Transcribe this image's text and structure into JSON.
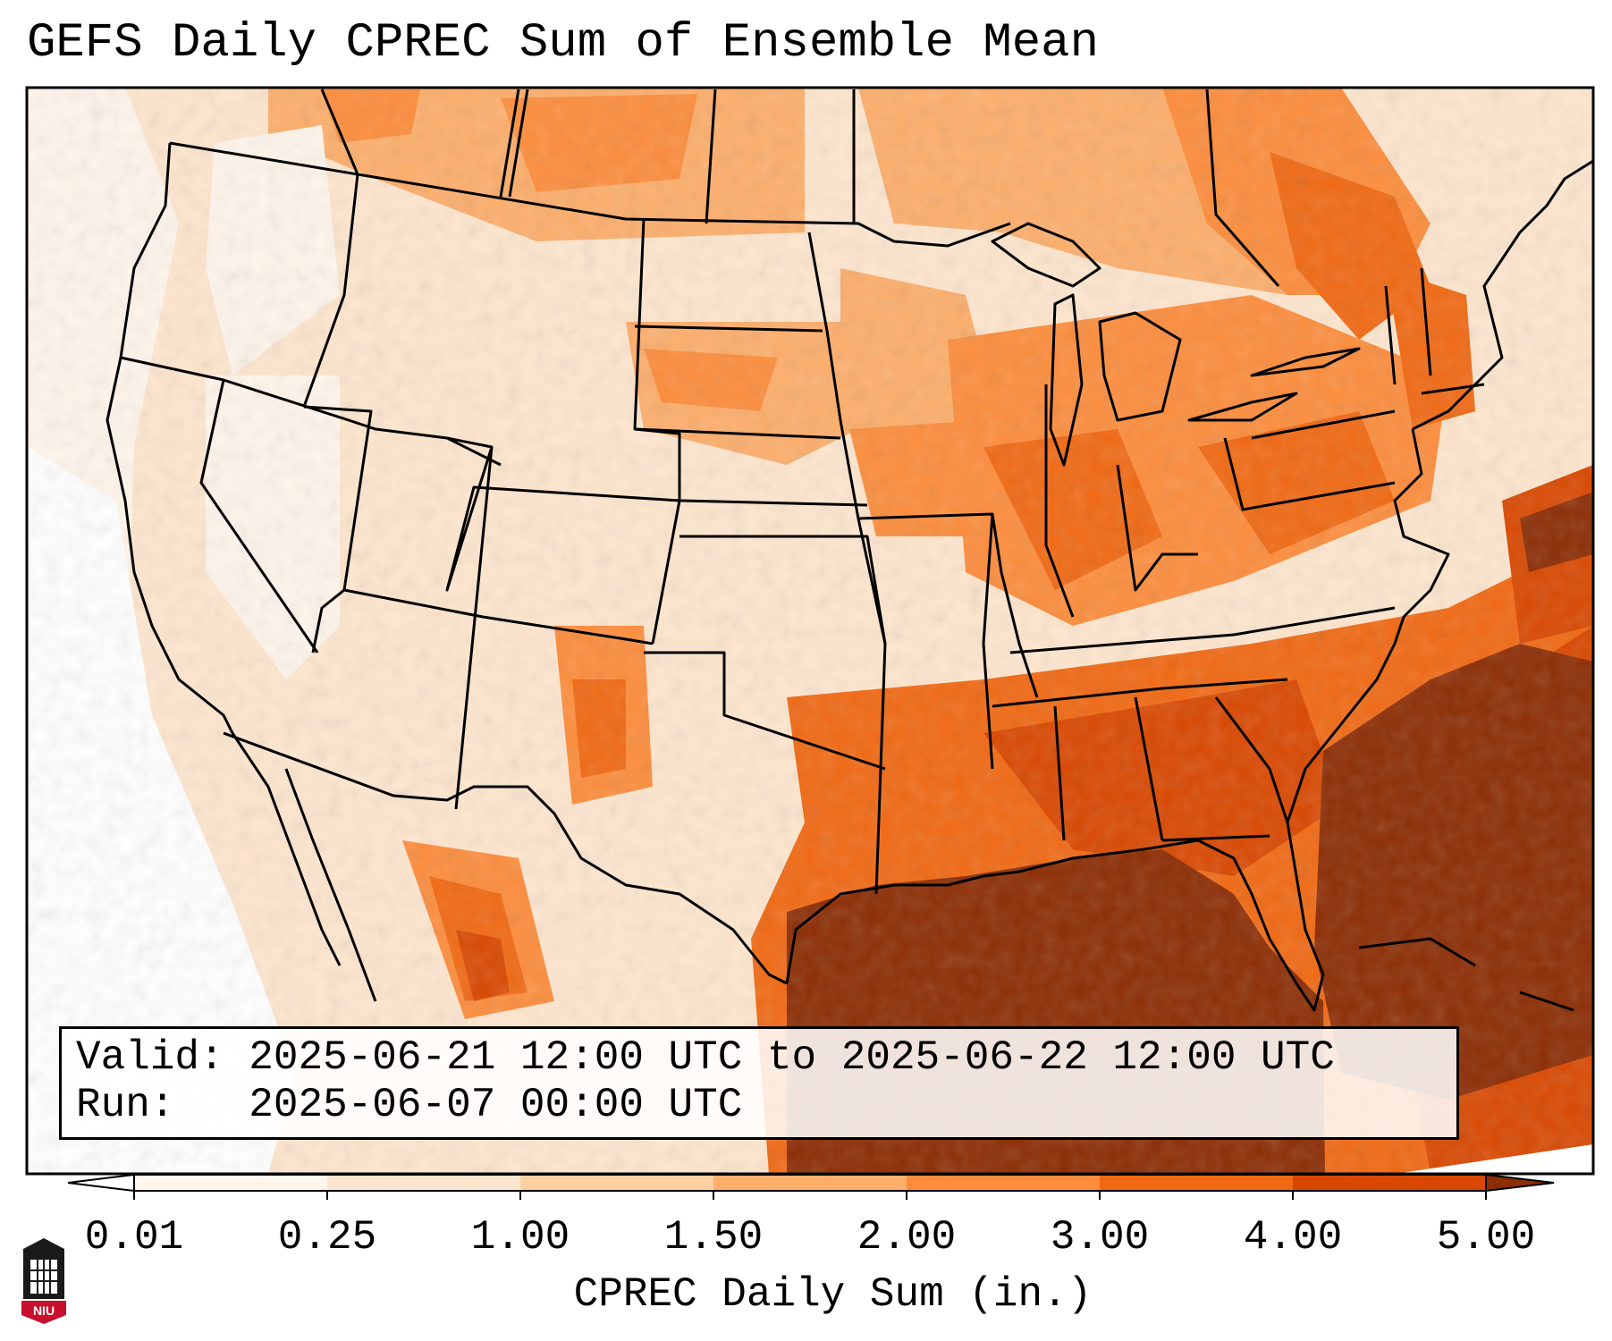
{
  "title": "GEFS Daily CPREC Sum of Ensemble Mean",
  "info": {
    "valid_label": "Valid:",
    "valid_value": "2025-06-21 12:00 UTC to 2025-06-22 12:00 UTC",
    "run_label": "Run:",
    "run_value": "2025-06-07 00:00 UTC"
  },
  "colorbar": {
    "label": "CPREC Daily Sum (in.)",
    "ticks": [
      "0.01",
      "0.25",
      "1.00",
      "1.50",
      "2.00",
      "3.00",
      "4.00",
      "5.00"
    ],
    "colors": [
      "#fff5eb",
      "#fee6ce",
      "#fdd0a2",
      "#fdae6b",
      "#fd8d3c",
      "#f16913",
      "#d94801",
      "#8c2d04"
    ],
    "under_color": "#ffffff",
    "over_color": "#7f2704"
  },
  "logo": {
    "text": "NIU",
    "color": "#c8102e"
  },
  "map": {
    "projection": "lambert-conformal",
    "region": "CONUS",
    "coastline_color": "#000000",
    "border_color": "#000000"
  }
}
